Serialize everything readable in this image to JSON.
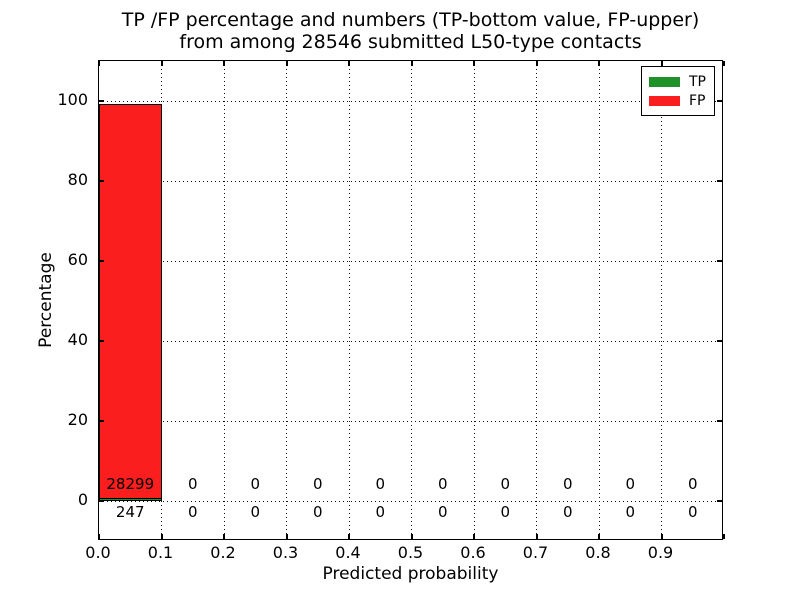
{
  "title": {
    "line1": "TP /FP percentage and numbers (TP-bottom value, FP-upper)",
    "line2": "from among 28546 submitted L50-type contacts"
  },
  "legend": {
    "items": [
      {
        "label": "TP",
        "color": "#1e9128"
      },
      {
        "label": "FP",
        "color": "#fa1e1e"
      }
    ]
  },
  "chart_data": {
    "type": "bar",
    "title": "TP /FP percentage and numbers (TP-bottom value, FP-upper) from among 28546 submitted L50-type contacts",
    "xlabel": "Predicted probability",
    "ylabel": "Percentage",
    "xlim": [
      0.0,
      1.0
    ],
    "ylim": [
      -10,
      110
    ],
    "grid": "dotted",
    "legend_position": "upper right",
    "total_submitted": 28546,
    "bin_edges": [
      0.0,
      0.1,
      0.2,
      0.3,
      0.4,
      0.5,
      0.6,
      0.7,
      0.8,
      0.9,
      1.0
    ],
    "xtick_labels": [
      "0.0",
      "0.1",
      "0.2",
      "0.3",
      "0.4",
      "0.5",
      "0.6",
      "0.7",
      "0.8",
      "0.9"
    ],
    "ytick_values": [
      0,
      20,
      40,
      60,
      80,
      100
    ],
    "series": [
      {
        "name": "TP",
        "color": "#1e9128",
        "counts": [
          247,
          0,
          0,
          0,
          0,
          0,
          0,
          0,
          0,
          0
        ],
        "percent": [
          0.87,
          0,
          0,
          0,
          0,
          0,
          0,
          0,
          0,
          0
        ]
      },
      {
        "name": "FP",
        "color": "#fa1e1e",
        "counts": [
          28299,
          0,
          0,
          0,
          0,
          0,
          0,
          0,
          0,
          0
        ],
        "percent": [
          99.13,
          0,
          0,
          0,
          0,
          0,
          0,
          0,
          0,
          0
        ]
      }
    ]
  }
}
